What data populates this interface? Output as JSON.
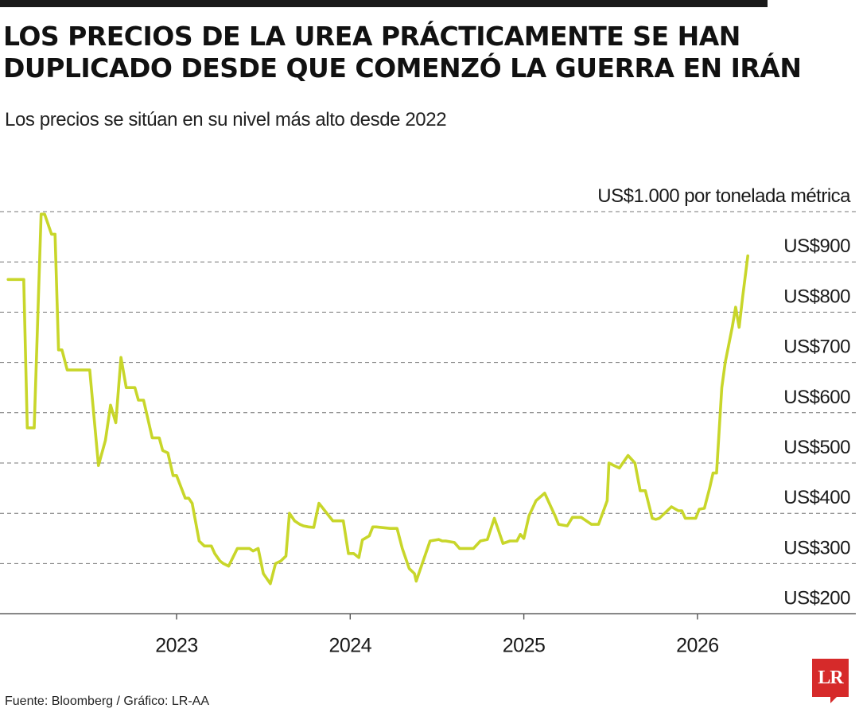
{
  "header": {
    "title": "LOS PRECIOS DE LA UREA PRÁCTICAMENTE SE HAN DUPLICADO DESDE QUE COMENZÓ LA GUERRA EN IRÁN",
    "subtitle": "Los precios se sitúan en su nivel más alto desde 2022"
  },
  "footer": {
    "source": "Fuente: Bloomberg / Gráfico: LR-AA",
    "logo_text": "LR"
  },
  "colors": {
    "line": "#c8d62a",
    "grid": "#777777",
    "logo": "#d62a2a"
  },
  "chart_data": {
    "type": "line",
    "title": "LOS PRECIOS DE LA UREA PRÁCTICAMENTE SE HAN DUPLICADO DESDE QUE COMENZÓ LA GUERRA EN IRÁN",
    "subtitle": "Los precios se sitúan en su nivel más alto desde 2022",
    "xlabel": "",
    "ylabel": "",
    "xlim": [
      2022.0,
      2026.5
    ],
    "ylim": [
      200,
      1000
    ],
    "grid": true,
    "y_ticks": [
      {
        "value": 1000,
        "label": "US$1.000 por tonelada métrica"
      },
      {
        "value": 900,
        "label": "US$900"
      },
      {
        "value": 800,
        "label": "US$800"
      },
      {
        "value": 700,
        "label": "US$700"
      },
      {
        "value": 600,
        "label": "US$600"
      },
      {
        "value": 500,
        "label": "US$500"
      },
      {
        "value": 400,
        "label": "US$400"
      },
      {
        "value": 300,
        "label": "US$300"
      },
      {
        "value": 200,
        "label": "US$200"
      }
    ],
    "x_ticks": [
      {
        "value": 2023,
        "label": "2023"
      },
      {
        "value": 2024,
        "label": "2024"
      },
      {
        "value": 2025,
        "label": "2025"
      },
      {
        "value": 2026,
        "label": "2026"
      }
    ],
    "series": [
      {
        "x": [
          2022.03,
          2022.12,
          2022.12,
          2022.14,
          2022.18,
          2022.22,
          2022.24,
          2022.28,
          2022.3,
          2022.32,
          2022.34,
          2022.37,
          2022.4,
          2022.45,
          2022.5,
          2022.55,
          2022.59,
          2022.62,
          2022.65,
          2022.68,
          2022.71,
          2022.73,
          2022.76,
          2022.78,
          2022.81,
          2022.86,
          2022.9,
          2022.92,
          2022.95,
          2022.98,
          2023.0,
          2023.05,
          2023.07,
          2023.09,
          2023.13,
          2023.16,
          2023.2,
          2023.22,
          2023.25,
          2023.27,
          2023.3,
          2023.35,
          2023.42,
          2023.44,
          2023.47,
          2023.5,
          2023.54,
          2023.57,
          2023.6,
          2023.63,
          2023.65,
          2023.68,
          2023.71,
          2023.73,
          2023.76,
          2023.79,
          2023.82,
          2023.9,
          2023.96,
          2023.99,
          2024.02,
          2024.05,
          2024.07,
          2024.11,
          2024.13,
          2024.15,
          2024.23,
          2024.27,
          2024.3,
          2024.34,
          2024.37,
          2024.38,
          2024.42,
          2024.46,
          2024.51,
          2024.53,
          2024.55,
          2024.6,
          2024.63,
          2024.71,
          2024.75,
          2024.79,
          2024.83,
          2024.85,
          2024.87,
          2024.88,
          2024.92,
          2024.96,
          2024.98,
          2025.0,
          2025.03,
          2025.07,
          2025.12,
          2025.16,
          2025.18,
          2025.2,
          2025.25,
          2025.28,
          2025.33,
          2025.39,
          2025.43,
          2025.48,
          2025.49,
          2025.52,
          2025.55,
          2025.6,
          2025.64,
          2025.67,
          2025.7,
          2025.74,
          2025.76,
          2025.78,
          2025.85,
          2025.89,
          2025.91,
          2025.93,
          2025.96,
          2025.99,
          2026.01,
          2026.04,
          2026.07,
          2026.09,
          2026.11,
          2026.14,
          2026.16,
          2026.2,
          2026.22,
          2026.24,
          2026.26,
          2026.29
        ],
        "y": [
          865,
          865,
          860,
          570,
          570,
          995,
          995,
          955,
          955,
          725,
          725,
          685,
          685,
          685,
          685,
          495,
          545,
          615,
          580,
          710,
          650,
          650,
          650,
          625,
          625,
          550,
          550,
          525,
          520,
          475,
          475,
          430,
          430,
          420,
          345,
          335,
          335,
          320,
          305,
          300,
          295,
          330,
          330,
          325,
          330,
          280,
          260,
          300,
          305,
          315,
          400,
          385,
          378,
          375,
          373,
          372,
          420,
          385,
          385,
          320,
          320,
          312,
          347,
          355,
          373,
          373,
          370,
          370,
          330,
          290,
          280,
          265,
          305,
          345,
          348,
          345,
          345,
          342,
          330,
          330,
          345,
          348,
          390,
          370,
          350,
          340,
          345,
          345,
          358,
          350,
          395,
          425,
          440,
          410,
          395,
          378,
          375,
          392,
          392,
          378,
          378,
          425,
          500,
          495,
          490,
          515,
          500,
          445,
          445,
          390,
          388,
          390,
          413,
          405,
          405,
          390,
          390,
          390,
          408,
          410,
          450,
          480,
          480,
          650,
          700,
          770,
          810,
          770,
          830,
          912
        ]
      }
    ]
  }
}
